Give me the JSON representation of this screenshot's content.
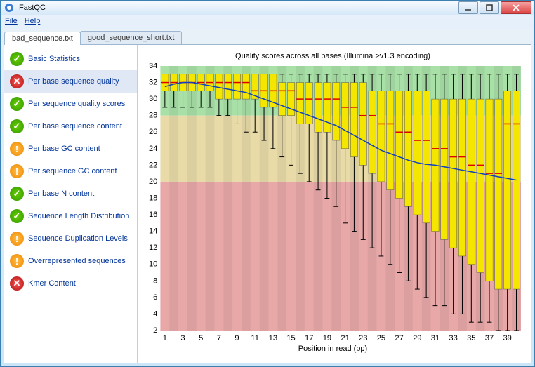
{
  "window": {
    "title": "FastQC"
  },
  "menu": {
    "file": "File",
    "help": "Help"
  },
  "tabs": [
    {
      "label": "bad_sequence.txt",
      "active": true
    },
    {
      "label": "good_sequence_short.txt",
      "active": false
    }
  ],
  "sidebar": [
    {
      "label": "Basic Statistics",
      "status": "pass"
    },
    {
      "label": "Per base sequence quality",
      "status": "fail",
      "selected": true
    },
    {
      "label": "Per sequence quality scores",
      "status": "pass"
    },
    {
      "label": "Per base sequence content",
      "status": "pass"
    },
    {
      "label": "Per base GC content",
      "status": "warn"
    },
    {
      "label": "Per sequence GC content",
      "status": "warn"
    },
    {
      "label": "Per base N content",
      "status": "pass"
    },
    {
      "label": "Sequence Length Distribution",
      "status": "pass"
    },
    {
      "label": "Sequence Duplication Levels",
      "status": "warn"
    },
    {
      "label": "Overrepresented sequences",
      "status": "warn"
    },
    {
      "label": "Kmer Content",
      "status": "fail"
    }
  ],
  "chart": {
    "title": "Quality scores across all bases (Illumina >v1.3 encoding)",
    "xlabel": "Position in read (bp)",
    "ylim": [
      2,
      34
    ],
    "yticks": [
      2,
      4,
      6,
      8,
      10,
      12,
      14,
      16,
      18,
      20,
      22,
      24,
      26,
      28,
      30,
      32,
      34
    ],
    "xticks": [
      1,
      3,
      5,
      7,
      9,
      11,
      13,
      15,
      17,
      19,
      21,
      23,
      25,
      27,
      29,
      31,
      33,
      35,
      37,
      39
    ],
    "n_positions": 40,
    "bg_bands": [
      {
        "from": 28,
        "to": 34,
        "color": "#a8e0a8"
      },
      {
        "from": 20,
        "to": 28,
        "color": "#e8dba8"
      },
      {
        "from": 2,
        "to": 20,
        "color": "#e8a8a8"
      }
    ],
    "stripe_dark": "rgba(0,0,0,0.05)",
    "box_fill": "#f5e600",
    "box_stroke": "#555",
    "median_color": "#d00",
    "mean_color": "#1040c0",
    "whisker_color": "#000",
    "boxes": [
      {
        "p": 1,
        "lw": 29,
        "q1": 31,
        "med": 32,
        "q3": 33,
        "uw": 33,
        "mean": 31.5
      },
      {
        "p": 2,
        "lw": 29,
        "q1": 31,
        "med": 32,
        "q3": 33,
        "uw": 33,
        "mean": 31.8
      },
      {
        "p": 3,
        "lw": 29,
        "q1": 31,
        "med": 32,
        "q3": 33,
        "uw": 33,
        "mean": 32
      },
      {
        "p": 4,
        "lw": 29,
        "q1": 31,
        "med": 32,
        "q3": 33,
        "uw": 33,
        "mean": 32
      },
      {
        "p": 5,
        "lw": 29,
        "q1": 31,
        "med": 32,
        "q3": 33,
        "uw": 33,
        "mean": 31.8
      },
      {
        "p": 6,
        "lw": 29,
        "q1": 31,
        "med": 32,
        "q3": 33,
        "uw": 33,
        "mean": 31.6
      },
      {
        "p": 7,
        "lw": 28,
        "q1": 30,
        "med": 32,
        "q3": 33,
        "uw": 33,
        "mean": 31.4
      },
      {
        "p": 8,
        "lw": 28,
        "q1": 30,
        "med": 32,
        "q3": 33,
        "uw": 33,
        "mean": 31.2
      },
      {
        "p": 9,
        "lw": 27,
        "q1": 30,
        "med": 32,
        "q3": 33,
        "uw": 33,
        "mean": 31
      },
      {
        "p": 10,
        "lw": 26,
        "q1": 30,
        "med": 32,
        "q3": 33,
        "uw": 33,
        "mean": 30.8
      },
      {
        "p": 11,
        "lw": 26,
        "q1": 30,
        "med": 31,
        "q3": 33,
        "uw": 33,
        "mean": 30.4
      },
      {
        "p": 12,
        "lw": 25,
        "q1": 29,
        "med": 31,
        "q3": 33,
        "uw": 33,
        "mean": 30
      },
      {
        "p": 13,
        "lw": 24,
        "q1": 29,
        "med": 31,
        "q3": 33,
        "uw": 33,
        "mean": 29.6
      },
      {
        "p": 14,
        "lw": 23,
        "q1": 28,
        "med": 31,
        "q3": 32,
        "uw": 33,
        "mean": 29.2
      },
      {
        "p": 15,
        "lw": 22,
        "q1": 28,
        "med": 31,
        "q3": 32,
        "uw": 33,
        "mean": 28.8
      },
      {
        "p": 16,
        "lw": 21,
        "q1": 27,
        "med": 30,
        "q3": 32,
        "uw": 33,
        "mean": 28.4
      },
      {
        "p": 17,
        "lw": 20,
        "q1": 27,
        "med": 30,
        "q3": 32,
        "uw": 33,
        "mean": 28
      },
      {
        "p": 18,
        "lw": 19,
        "q1": 26,
        "med": 30,
        "q3": 32,
        "uw": 33,
        "mean": 27.6
      },
      {
        "p": 19,
        "lw": 18,
        "q1": 26,
        "med": 30,
        "q3": 32,
        "uw": 33,
        "mean": 27.2
      },
      {
        "p": 20,
        "lw": 17,
        "q1": 25,
        "med": 30,
        "q3": 32,
        "uw": 33,
        "mean": 26.8
      },
      {
        "p": 21,
        "lw": 15,
        "q1": 24,
        "med": 29,
        "q3": 32,
        "uw": 33,
        "mean": 26.2
      },
      {
        "p": 22,
        "lw": 14,
        "q1": 23,
        "med": 29,
        "q3": 32,
        "uw": 33,
        "mean": 25.6
      },
      {
        "p": 23,
        "lw": 13,
        "q1": 22,
        "med": 28,
        "q3": 32,
        "uw": 33,
        "mean": 25
      },
      {
        "p": 24,
        "lw": 12,
        "q1": 21,
        "med": 28,
        "q3": 31,
        "uw": 33,
        "mean": 24.4
      },
      {
        "p": 25,
        "lw": 11,
        "q1": 20,
        "med": 27,
        "q3": 31,
        "uw": 33,
        "mean": 23.8
      },
      {
        "p": 26,
        "lw": 10,
        "q1": 19,
        "med": 27,
        "q3": 31,
        "uw": 33,
        "mean": 23.4
      },
      {
        "p": 27,
        "lw": 9,
        "q1": 18,
        "med": 26,
        "q3": 31,
        "uw": 33,
        "mean": 23
      },
      {
        "p": 28,
        "lw": 8,
        "q1": 17,
        "med": 26,
        "q3": 31,
        "uw": 33,
        "mean": 22.6
      },
      {
        "p": 29,
        "lw": 7,
        "q1": 16,
        "med": 25,
        "q3": 31,
        "uw": 33,
        "mean": 22.3
      },
      {
        "p": 30,
        "lw": 6,
        "q1": 15,
        "med": 25,
        "q3": 31,
        "uw": 33,
        "mean": 22.1
      },
      {
        "p": 31,
        "lw": 5,
        "q1": 14,
        "med": 24,
        "q3": 30,
        "uw": 33,
        "mean": 22
      },
      {
        "p": 32,
        "lw": 5,
        "q1": 13,
        "med": 24,
        "q3": 30,
        "uw": 33,
        "mean": 21.8
      },
      {
        "p": 33,
        "lw": 4,
        "q1": 12,
        "med": 23,
        "q3": 30,
        "uw": 33,
        "mean": 21.6
      },
      {
        "p": 34,
        "lw": 4,
        "q1": 11,
        "med": 23,
        "q3": 30,
        "uw": 33,
        "mean": 21.4
      },
      {
        "p": 35,
        "lw": 3,
        "q1": 10,
        "med": 22,
        "q3": 30,
        "uw": 33,
        "mean": 21.2
      },
      {
        "p": 36,
        "lw": 3,
        "q1": 9,
        "med": 22,
        "q3": 30,
        "uw": 33,
        "mean": 21
      },
      {
        "p": 37,
        "lw": 3,
        "q1": 8,
        "med": 21,
        "q3": 30,
        "uw": 33,
        "mean": 20.8
      },
      {
        "p": 38,
        "lw": 2,
        "q1": 7,
        "med": 21,
        "q3": 30,
        "uw": 33,
        "mean": 20.6
      },
      {
        "p": 39,
        "lw": 2,
        "q1": 7,
        "med": 27,
        "q3": 31,
        "uw": 33,
        "mean": 20.4
      },
      {
        "p": 40,
        "lw": 2,
        "q1": 7,
        "med": 27,
        "q3": 31,
        "uw": 33,
        "mean": 20.2
      }
    ]
  }
}
